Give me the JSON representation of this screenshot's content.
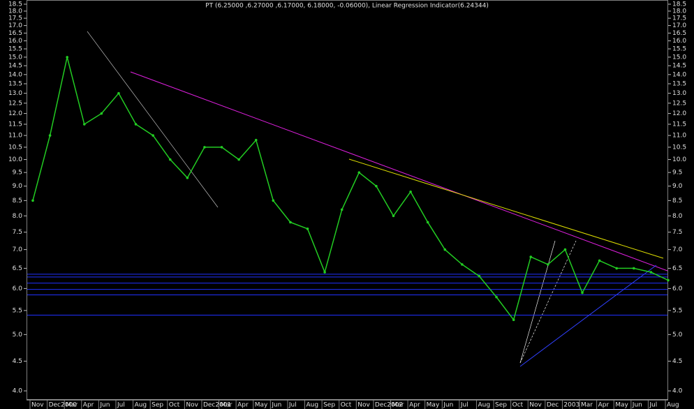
{
  "chart_data": {
    "type": "line",
    "title": "PT (6.25000 ,6.27000 ,6.17000, 6.18000, -0.06000), Linear Regression Indicator(6.24344)",
    "log_scale": true,
    "categories": [
      "Nov",
      "Dec2000",
      "Mar",
      "Apr",
      "Jun",
      "Jul",
      "Aug",
      "Sep",
      "Oct",
      "Nov",
      "Dec2001",
      "Mar",
      "Apr",
      "May",
      "Jun",
      "Jul",
      "Aug",
      "Sep",
      "Oct",
      "Nov",
      "Dec2002",
      "Mar",
      "Apr",
      "May",
      "Jun",
      "Jul",
      "Aug",
      "Sep",
      "Oct",
      "Nov",
      "Dec",
      "2003",
      "Mar",
      "Apr",
      "May",
      "Jun",
      "Jul",
      "Aug"
    ],
    "values": [
      8.5,
      11.0,
      15.0,
      11.5,
      12.0,
      13.0,
      11.5,
      11.0,
      10.0,
      9.3,
      10.5,
      10.5,
      10.0,
      10.8,
      8.5,
      7.8,
      7.6,
      6.4,
      8.2,
      9.5,
      9.0,
      8.0,
      8.8,
      7.8,
      7.0,
      6.6,
      6.3,
      5.8,
      5.3,
      6.8,
      6.6,
      7.0,
      5.9,
      6.7,
      6.5,
      6.5,
      6.4,
      6.2
    ],
    "color": "#22cc22",
    "hlines": [
      6.35,
      6.28,
      6.13,
      5.98,
      5.85,
      5.4
    ],
    "hline_color": "#2030ff",
    "ylim": [
      3.87,
      18.81
    ],
    "yticks": [
      {
        "value": 4,
        "label": "4.0"
      },
      4.5,
      {
        "value": 5,
        "label": "5.0"
      },
      5.5,
      {
        "value": 6,
        "label": "6.0"
      },
      6.5,
      {
        "value": 7,
        "label": "7.0"
      },
      7.5,
      {
        "value": 8,
        "label": "8.0"
      },
      8.5,
      {
        "value": 9,
        "label": "9.0"
      },
      9.5,
      {
        "value": 10,
        "label": "10.0"
      },
      10.5,
      {
        "value": 11,
        "label": "11.0"
      },
      11.5,
      {
        "value": 12,
        "label": "12.0"
      },
      12.5,
      {
        "value": 13,
        "label": "13.0"
      },
      13.5,
      {
        "value": 14,
        "label": "14.0"
      },
      14.5,
      {
        "value": 15,
        "label": "15.0"
      },
      15.5,
      {
        "value": 16,
        "label": "16.0"
      },
      16.5,
      {
        "value": 17,
        "label": "17.0"
      },
      17.5,
      {
        "value": 18,
        "label": "18.0"
      },
      18.5
    ]
  }
}
